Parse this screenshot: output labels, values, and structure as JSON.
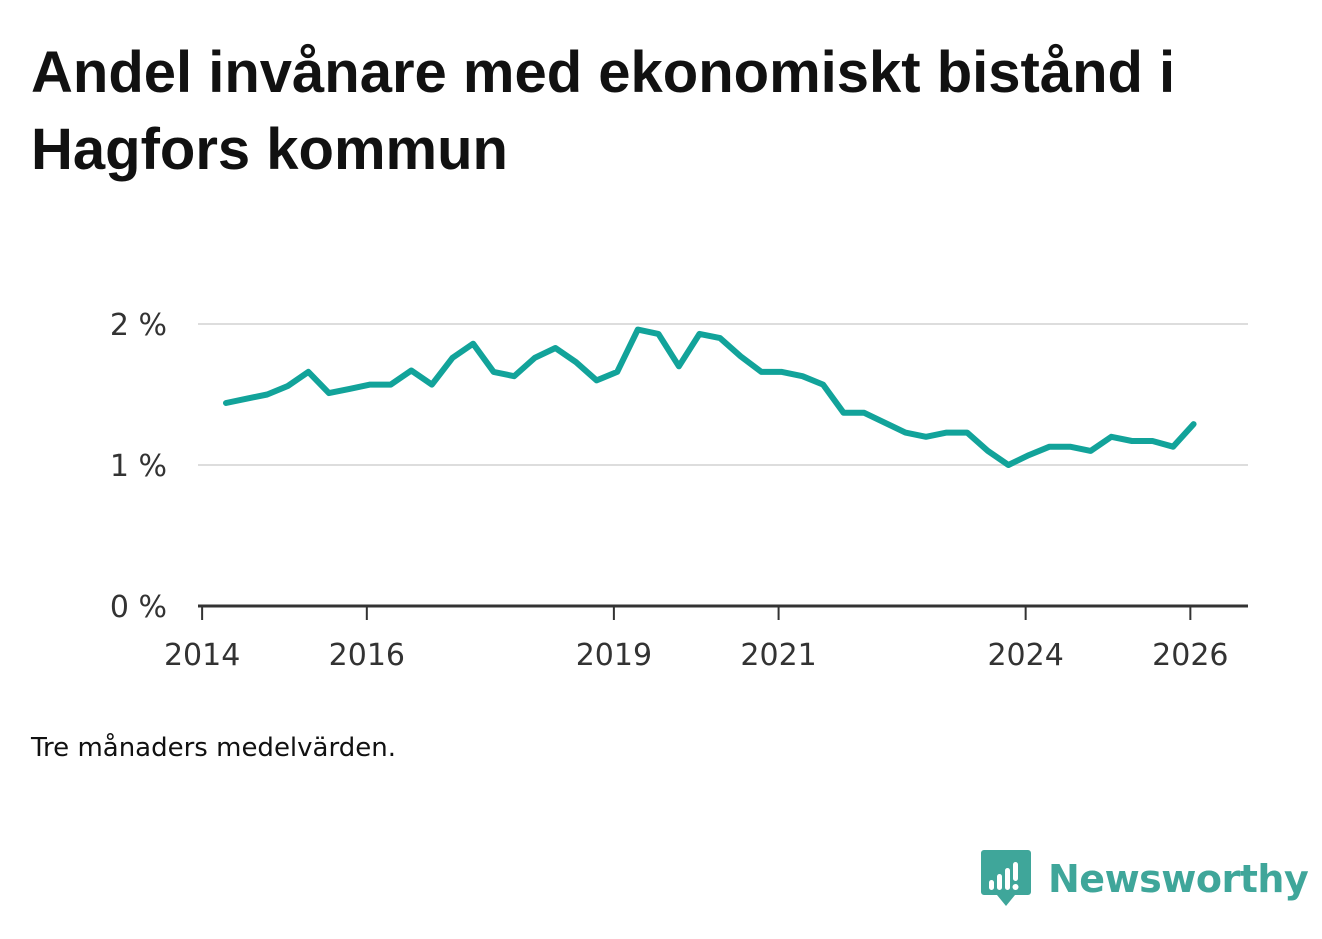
{
  "chart_data": {
    "type": "line",
    "title": "Andel invånare med ekonomiskt bistånd i Hagfors kommun",
    "note": "Tre månaders medelvärden.",
    "xlabel": "",
    "ylabel": "",
    "ylim": [
      0,
      2
    ],
    "y_ticks": [
      {
        "value": 0,
        "label": "0 %"
      },
      {
        "value": 1,
        "label": "1 %"
      },
      {
        "value": 2,
        "label": "2 %"
      }
    ],
    "x_ticks": [
      {
        "value": 2014,
        "label": "2014"
      },
      {
        "value": 2016,
        "label": "2016"
      },
      {
        "value": 2019,
        "label": "2019"
      },
      {
        "value": 2021,
        "label": "2021"
      },
      {
        "value": 2024,
        "label": "2024"
      },
      {
        "value": 2026,
        "label": "2026"
      }
    ],
    "xlim": [
      2013.95,
      2026.7
    ],
    "grid": true,
    "line_color": "#12a39a",
    "series": [
      {
        "name": "Andel invånare med ekonomiskt bistånd",
        "x": [
          2014.29,
          2014.54,
          2014.79,
          2015.04,
          2015.29,
          2015.54,
          2015.79,
          2016.04,
          2016.29,
          2016.54,
          2016.79,
          2017.04,
          2017.29,
          2017.54,
          2017.79,
          2018.04,
          2018.29,
          2018.54,
          2018.79,
          2019.04,
          2019.29,
          2019.54,
          2019.79,
          2020.04,
          2020.29,
          2020.54,
          2020.79,
          2021.04,
          2021.29,
          2021.54,
          2021.79,
          2022.04,
          2022.29,
          2022.54,
          2022.79,
          2023.04,
          2023.29,
          2023.54,
          2023.79,
          2024.04,
          2024.29,
          2024.54,
          2024.79,
          2025.04,
          2025.29,
          2025.54,
          2025.79,
          2026.04
        ],
        "values": [
          1.44,
          1.47,
          1.5,
          1.56,
          1.66,
          1.51,
          1.54,
          1.57,
          1.57,
          1.67,
          1.57,
          1.76,
          1.86,
          1.66,
          1.63,
          1.76,
          1.83,
          1.73,
          1.6,
          1.66,
          1.96,
          1.93,
          1.7,
          1.93,
          1.9,
          1.77,
          1.66,
          1.66,
          1.63,
          1.57,
          1.37,
          1.37,
          1.3,
          1.23,
          1.2,
          1.23,
          1.23,
          1.1,
          1.0,
          1.07,
          1.13,
          1.13,
          1.1,
          1.2,
          1.17,
          1.17,
          1.13,
          1.29
        ]
      }
    ]
  },
  "brand": {
    "name": "Newsworthy",
    "logo_icon": "newsworthy-chart-badge-icon",
    "color": "#3fa69a"
  }
}
